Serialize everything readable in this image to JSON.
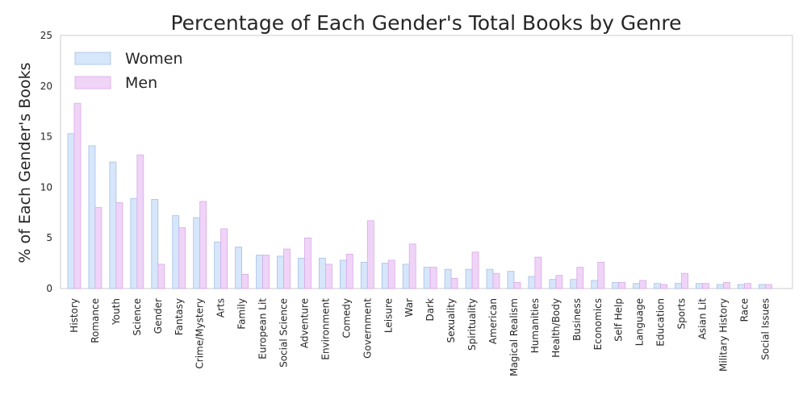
{
  "chart_data": {
    "type": "bar",
    "title": "Percentage of Each Gender's Total Books by Genre",
    "xlabel": "",
    "ylabel": "% of Each Gender's Books",
    "ylim": [
      0,
      25
    ],
    "yticks": [
      0,
      5,
      10,
      15,
      20,
      25
    ],
    "grid": false,
    "legend_position": "top-left",
    "categories": [
      "History",
      "Romance",
      "Youth",
      "Science",
      "Gender",
      "Fantasy",
      "Crime/Mystery",
      "Arts",
      "Family",
      "European Lit",
      "Social Science",
      "Adventure",
      "Environment",
      "Comedy",
      "Government",
      "Leisure",
      "War",
      "Dark",
      "Sexuality",
      "Spirituality",
      "American",
      "Magical Realism",
      "Humanities",
      "Health/Body",
      "Business",
      "Economics",
      "Self Help",
      "Language",
      "Education",
      "Sports",
      "Asian Lit",
      "Military History",
      "Race",
      "Social Issues"
    ],
    "series": [
      {
        "name": "Women",
        "color": "#d6e6fb",
        "edge": "#a9bfe0",
        "values": [
          15.3,
          14.1,
          12.5,
          8.9,
          8.8,
          7.2,
          7.0,
          4.6,
          4.1,
          3.3,
          3.2,
          3.0,
          3.0,
          2.8,
          2.6,
          2.5,
          2.4,
          2.1,
          1.9,
          1.9,
          1.9,
          1.7,
          1.2,
          0.9,
          0.9,
          0.8,
          0.6,
          0.5,
          0.5,
          0.5,
          0.5,
          0.4,
          0.4,
          0.4
        ]
      },
      {
        "name": "Men",
        "color": "#f0d4f8",
        "edge": "#d9a9e6",
        "values": [
          18.3,
          8.0,
          8.5,
          13.2,
          2.4,
          6.0,
          8.6,
          5.9,
          1.4,
          3.3,
          3.9,
          5.0,
          2.4,
          3.4,
          6.7,
          2.8,
          4.4,
          2.1,
          1.0,
          3.6,
          1.5,
          0.6,
          3.1,
          1.3,
          2.1,
          2.6,
          0.6,
          0.8,
          0.4,
          1.5,
          0.5,
          0.6,
          0.5,
          0.4
        ]
      }
    ]
  }
}
